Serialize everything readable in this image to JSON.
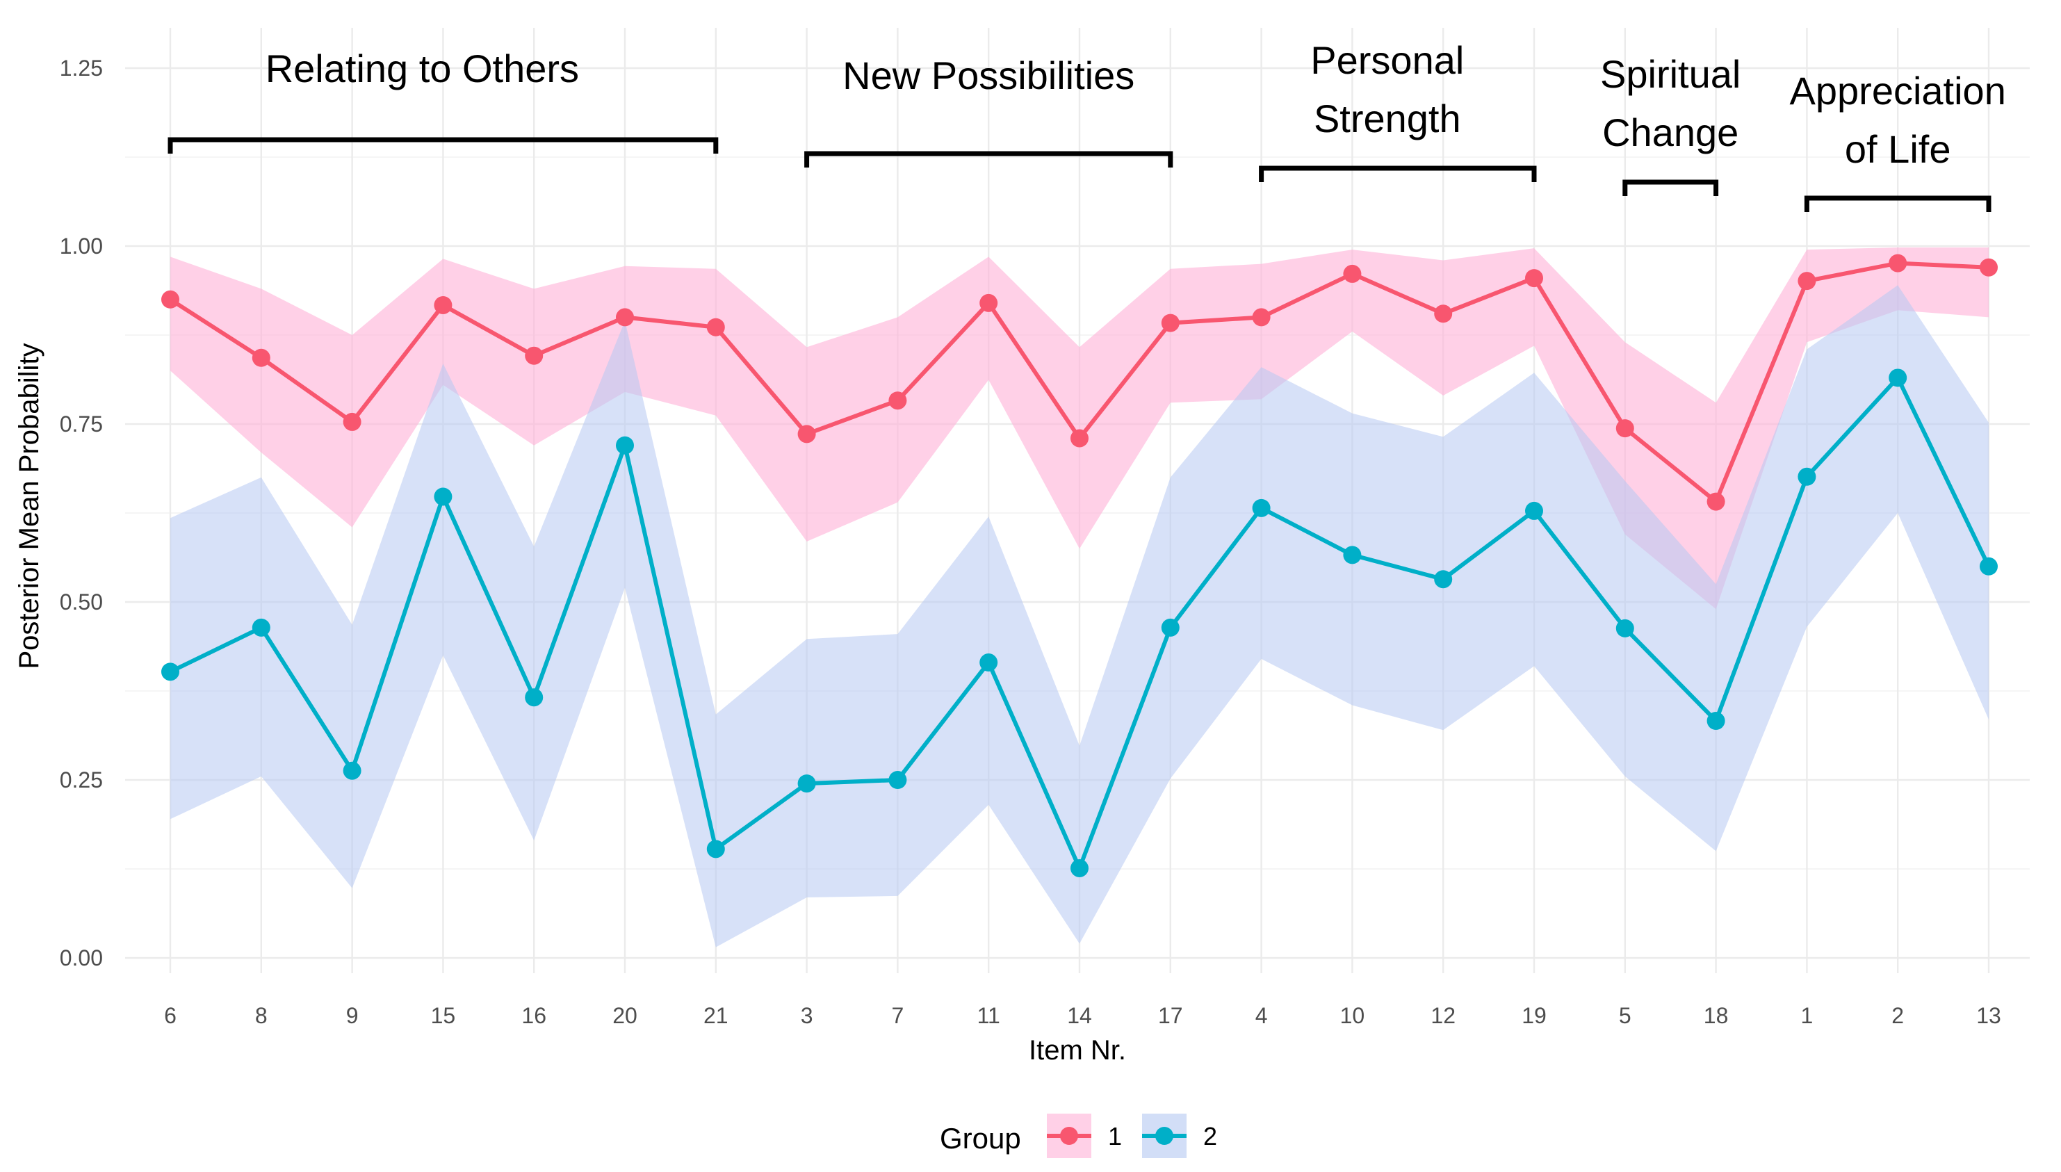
{
  "chart_data": {
    "type": "line",
    "xlabel": "Item Nr.",
    "ylabel": "Posterior Mean Probability",
    "ylim": [
      0,
      1.25
    ],
    "yticks": [
      0.0,
      0.25,
      0.5,
      0.75,
      1.0,
      1.25
    ],
    "ytick_labels": [
      "0.00",
      "0.25",
      "0.50",
      "0.75",
      "1.00",
      "1.25"
    ],
    "grid": true,
    "categories": [
      "6",
      "8",
      "9",
      "15",
      "16",
      "20",
      "21",
      "3",
      "7",
      "11",
      "14",
      "17",
      "4",
      "10",
      "12",
      "19",
      "5",
      "18",
      "1",
      "2",
      "13"
    ],
    "series": [
      {
        "name": "1",
        "color": "#F8566F",
        "band_color": "#FFB3D9",
        "values": [
          0.925,
          0.843,
          0.753,
          0.917,
          0.846,
          0.9,
          0.886,
          0.736,
          0.783,
          0.92,
          0.73,
          0.892,
          0.9,
          0.961,
          0.905,
          0.955,
          0.744,
          0.641,
          0.951,
          0.976,
          0.97
        ],
        "lower": [
          0.825,
          0.71,
          0.605,
          0.805,
          0.72,
          0.795,
          0.762,
          0.585,
          0.64,
          0.812,
          0.575,
          0.78,
          0.785,
          0.88,
          0.79,
          0.86,
          0.595,
          0.49,
          0.865,
          0.91,
          0.9
        ],
        "upper": [
          0.985,
          0.94,
          0.875,
          0.982,
          0.94,
          0.972,
          0.968,
          0.858,
          0.9,
          0.985,
          0.858,
          0.968,
          0.975,
          0.995,
          0.98,
          0.997,
          0.865,
          0.78,
          0.995,
          0.998,
          0.998
        ]
      },
      {
        "name": "2",
        "color": "#00AFC8",
        "band_color": "#B7C9F2",
        "values": [
          0.402,
          0.464,
          0.263,
          0.648,
          0.366,
          0.72,
          0.153,
          0.245,
          0.25,
          0.415,
          0.126,
          0.464,
          0.632,
          0.566,
          0.532,
          0.628,
          0.463,
          0.333,
          0.676,
          0.815,
          0.55
        ],
        "lower": [
          0.195,
          0.255,
          0.098,
          0.425,
          0.165,
          0.52,
          0.015,
          0.085,
          0.087,
          0.215,
          0.02,
          0.252,
          0.42,
          0.355,
          0.32,
          0.41,
          0.255,
          0.15,
          0.465,
          0.625,
          0.335
        ],
        "upper": [
          0.618,
          0.675,
          0.468,
          0.835,
          0.578,
          0.895,
          0.342,
          0.448,
          0.455,
          0.62,
          0.298,
          0.675,
          0.83,
          0.765,
          0.732,
          0.822,
          0.67,
          0.525,
          0.855,
          0.945,
          0.752
        ]
      }
    ],
    "groups": [
      {
        "label_lines": [
          "Relating to Others"
        ],
        "first": "6",
        "last": "21"
      },
      {
        "label_lines": [
          "New Possibilities"
        ],
        "first": "3",
        "last": "17"
      },
      {
        "label_lines": [
          "Personal",
          "Strength"
        ],
        "first": "4",
        "last": "19"
      },
      {
        "label_lines": [
          "Spiritual",
          "Change"
        ],
        "first": "5",
        "last": "18"
      },
      {
        "label_lines": [
          "Appreciation",
          "of Life"
        ],
        "first": "1",
        "last": "13"
      }
    ],
    "legend": {
      "title": "Group",
      "entries": [
        "1",
        "2"
      ],
      "position": "bottom"
    }
  }
}
